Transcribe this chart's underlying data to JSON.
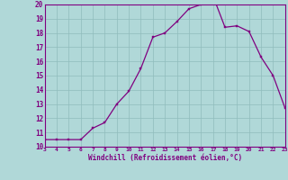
{
  "x": [
    3,
    4,
    5,
    6,
    7,
    8,
    9,
    10,
    11,
    12,
    13,
    14,
    15,
    16,
    17,
    18,
    19,
    20,
    21,
    22,
    23
  ],
  "y": [
    10.5,
    10.5,
    10.5,
    10.5,
    11.3,
    11.7,
    13.0,
    13.9,
    15.5,
    17.7,
    18.0,
    18.8,
    19.7,
    20.0,
    20.6,
    18.4,
    18.5,
    18.1,
    16.3,
    15.0,
    12.7
  ],
  "xlim": [
    3,
    23
  ],
  "ylim": [
    10,
    20
  ],
  "xticks": [
    3,
    4,
    5,
    6,
    7,
    8,
    9,
    10,
    11,
    12,
    13,
    14,
    15,
    16,
    17,
    18,
    19,
    20,
    21,
    22,
    23
  ],
  "yticks": [
    10,
    11,
    12,
    13,
    14,
    15,
    16,
    17,
    18,
    19,
    20
  ],
  "xlabel": "Windchill (Refroidissement éolien,°C)",
  "line_color": "#800080",
  "marker_color": "#800080",
  "bg_color": "#b0d8d8",
  "grid_color": "#90bcbc",
  "spine_color": "#800080"
}
